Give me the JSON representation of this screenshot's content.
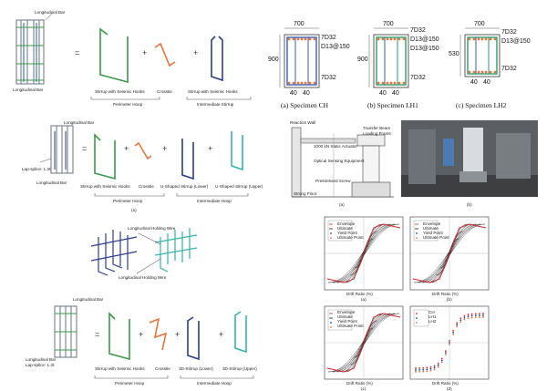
{
  "fig1": {
    "longitudinal_bar_top": "Longitudinal Bar",
    "longitudinal_bar_bottom": "Longitudinal Bar",
    "eq": "=",
    "plus1": "+",
    "plus2": "+",
    "stirrup1": "Stirrup with Seismic Hooks",
    "crosstie": "Crosstie",
    "stirrup2": "Stirrup with Seismic Hooks",
    "perimeter_hoop": "Perimeter Hoop",
    "intermediate_stirrup": "Intermediate Stirrup"
  },
  "fig2": {
    "longitudinal_bar_top": "Longitudinal Bar",
    "lap_splice": "Lap-splice: 1.3ℓ",
    "longitudinal_bar_bottom": "Longitudinal Bar",
    "eq": "=",
    "plus1": "+",
    "plus2": "+",
    "plus3": "+",
    "stirrup": "Stirrup with Seismic Hooks",
    "crosstie": "Crosstie",
    "u_lower": "U-Shaped Stirrup (Lower)",
    "u_upper": "U-Shaped Stirrup (Upper)",
    "perimeter_hoop": "Perimeter Hoop",
    "intermediate_hoop": "Intermediate Hoop",
    "caption": "(a)"
  },
  "fig3": {
    "wire_top": "Longitudinal Holding Wire",
    "wire_bottom": "Longitudinal Holding Wire"
  },
  "fig4": {
    "longitudinal_bar_top": "Longitudinal Bar",
    "longitudinal_bar_bottom": "Longitudinal Bar",
    "lap_splice": "Lap-splice: 1.3ℓ",
    "eq": "=",
    "plus1": "+",
    "plus2": "+",
    "plus3": "+",
    "stirrup": "Stirrup with Seismic Hooks",
    "crosstie": "Crosstie",
    "d_lower": "3D-Stirrup (Lower)",
    "d_upper": "3D-Stirrup (Upper)",
    "perimeter_hoop": "Perimeter Hoop",
    "intermediate_hoop": "Intermediate Hoop"
  },
  "sections": [
    {
      "top_dim": "700",
      "side_dim": "900",
      "bar_top": "7D32",
      "stirrup": "D13@150",
      "bar_bot": "7D32",
      "b1": "40",
      "b2": "40",
      "caption": "(a)  Specimen CH",
      "stirrup_color": "#3b5fb0"
    },
    {
      "top_dim": "700",
      "side_dim": "900",
      "bar_top": "7D32",
      "stirrup1": "D13@150",
      "stirrup2": "D13@150",
      "bar_bot": "7D32",
      "b1": "40",
      "b2": "40",
      "caption": "(b)  Specimen LH1",
      "stirrup_color": "#2f9a6a"
    },
    {
      "top_dim": "700",
      "side_dim": "530",
      "bar_top": "7D32",
      "stirrup": "D13@150",
      "bar_bot": "7D32",
      "b1": "40",
      "b2": "40",
      "caption": "(c)  Specimen LH2",
      "stirrup_color": "#2f9a6a"
    }
  ],
  "setup": {
    "reaction_wall": "Reaction Wall",
    "actuator": "1000 kN Static Actuator",
    "transfer_beam": "Transfer Beam",
    "loading_frame": "Loading Frame",
    "optical_sensor": "Optical Sensing Equipment",
    "prestress": "Prestressed Screw",
    "strong_floor": "Strong Floor",
    "caption_a": "(a)",
    "caption_b": "(b)"
  },
  "hysteresis": [
    {
      "caption": "(a)",
      "legend": [
        "Envelope",
        "Ultimate",
        "Yield Point",
        "Ultimate Point"
      ],
      "xlabel": "Drift Ratio (%)",
      "ylabel": "Force (kN)"
    },
    {
      "caption": "(b)",
      "legend": [
        "Envelope",
        "Ultimate",
        "Yield Point",
        "Ultimate Point"
      ],
      "xlabel": "Drift Ratio (%)",
      "ylabel": "Force (kN)"
    },
    {
      "caption": "(c)",
      "legend": [
        "Envelope",
        "Ultimate",
        "Yield Point",
        "Ultimate Point"
      ],
      "xlabel": "Drift Ratio (%)",
      "ylabel": "Force (kN)"
    },
    {
      "caption": "(d)",
      "legend": [
        "CH",
        "LH1",
        "LH2"
      ],
      "xlabel": "Drift Ratio (%)",
      "ylabel": "Force (kN)"
    }
  ],
  "colors": {
    "green": "#3a9a48",
    "orange": "#e8743b",
    "navy": "#2d3d8f",
    "teal": "#34b5a8",
    "grey": "#7f8a98",
    "red": "#d8232a"
  }
}
